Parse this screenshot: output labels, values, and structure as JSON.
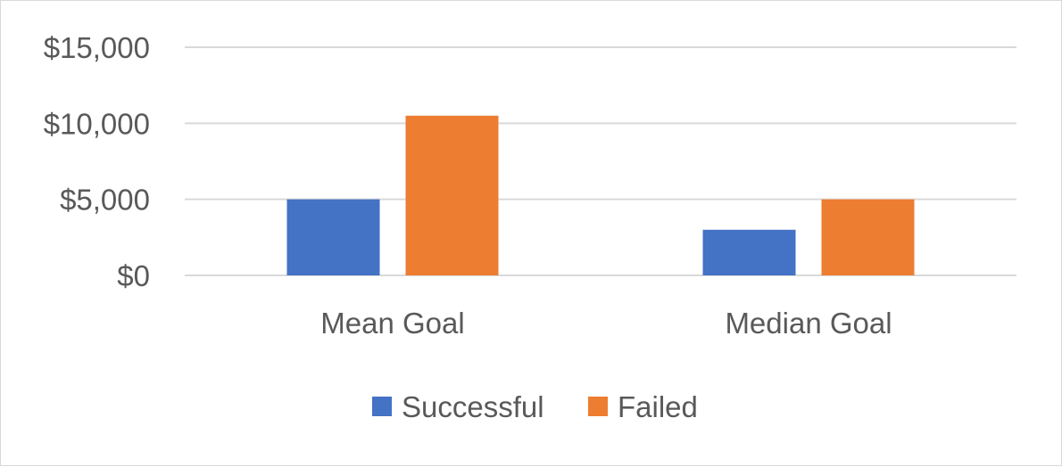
{
  "chart_data": {
    "type": "bar",
    "categories": [
      "Mean Goal",
      "Median Goal"
    ],
    "series": [
      {
        "name": "Successful",
        "values": [
          5000,
          3000
        ],
        "color": "#4472C4"
      },
      {
        "name": "Failed",
        "values": [
          10500,
          5000
        ],
        "color": "#ED7D31"
      }
    ],
    "ylim": [
      0,
      15000
    ],
    "y_ticks": [
      0,
      5000,
      10000,
      15000
    ],
    "y_tick_labels": [
      "$0",
      "$5,000",
      "$10,000",
      "$15,000"
    ],
    "grid": true,
    "legend_position": "bottom",
    "gridline_color": "#d9d9d9",
    "text_color": "#595959"
  }
}
